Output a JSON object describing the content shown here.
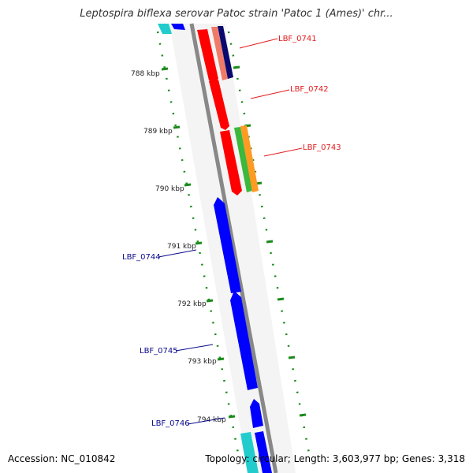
{
  "title": "Leptospira biflexa serovar Patoc strain 'Patoc 1 (Ames)' chr...",
  "footer": {
    "accession": "Accession: NC_010842",
    "topology": "Topology: circular; Length: 3,603,977 bp; Genes: 3,318"
  },
  "ticks": [
    {
      "label": "788 kbp"
    },
    {
      "label": "789 kbp"
    },
    {
      "label": "790 kbp"
    },
    {
      "label": "791 kbp"
    },
    {
      "label": "792 kbp"
    },
    {
      "label": "793 kbp"
    },
    {
      "label": "794 kbp"
    }
  ],
  "gene_labels": [
    {
      "text": "LBF_0741",
      "color": "#e41a1c"
    },
    {
      "text": "LBF_0742",
      "color": "#e41a1c"
    },
    {
      "text": "LBF_0743",
      "color": "#e41a1c"
    },
    {
      "text": "LBF_0744",
      "color": "#0a0a8c"
    },
    {
      "text": "LBF_0745",
      "color": "#0a0a8c"
    },
    {
      "text": "LBF_0746",
      "color": "#0a0a8c"
    }
  ],
  "colors": {
    "forward_cds": "#ff0000",
    "reverse_cds": "#0000ff",
    "backbone": "#888888",
    "tick_dots": "#1a8a1a",
    "salmon": "#f07a68",
    "navy": "#0a0a6e",
    "green": "#3cb83c",
    "orange": "#ff9a22",
    "cyan": "#22cccc"
  }
}
